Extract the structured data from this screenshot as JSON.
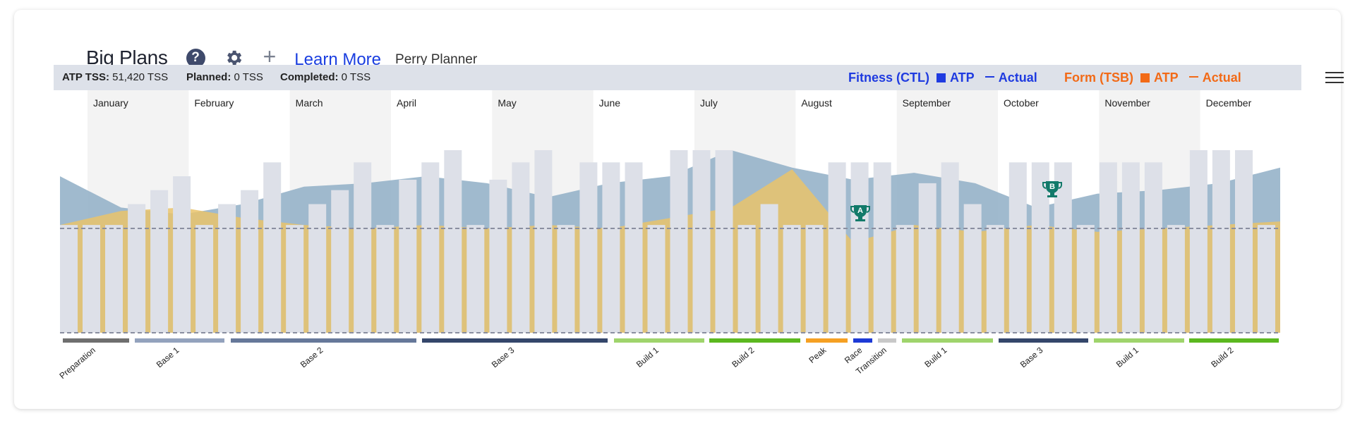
{
  "header": {
    "title": "Big Plans",
    "help_glyph": "?",
    "learn_more": "Learn More",
    "planner_name": "Perry Planner"
  },
  "summary": {
    "atp_tss_label": "ATP TSS:",
    "atp_tss_value": "51,420 TSS",
    "planned_label": "Planned:",
    "planned_value": "0 TSS",
    "completed_label": "Completed:",
    "completed_value": "0 TSS"
  },
  "legend": {
    "fitness_label": "Fitness (CTL)",
    "fitness_atp": "ATP",
    "fitness_actual": "Actual",
    "form_label": "Form (TSB)",
    "form_atp": "ATP",
    "form_actual": "Actual",
    "fitness_color": "#1f3be0",
    "form_color": "#f26a17"
  },
  "chart_data": {
    "type": "bar",
    "months": [
      "January",
      "February",
      "March",
      "April",
      "May",
      "June",
      "July",
      "August",
      "September",
      "October",
      "November",
      "December"
    ],
    "weekly_bar_levels": [
      0.62,
      0.62,
      0.62,
      0.74,
      0.82,
      0.9,
      0.62,
      0.74,
      0.82,
      0.98,
      0.62,
      0.74,
      0.82,
      0.98,
      0.62,
      0.88,
      0.98,
      1.05,
      0.62,
      0.88,
      0.98,
      1.05,
      0.62,
      0.98,
      0.98,
      0.98,
      0.62,
      1.05,
      1.05,
      1.05,
      0.62,
      0.74,
      0.62,
      0.62,
      0.98,
      0.98,
      0.98,
      0.62,
      0.86,
      0.98,
      0.74,
      0.62,
      0.98,
      0.98,
      0.98,
      0.62,
      0.98,
      0.98,
      0.98,
      0.62,
      1.05,
      1.05,
      1.05,
      0.62
    ],
    "fitness_ctl_levels": [
      0.9,
      0.72,
      0.68,
      0.74,
      0.84,
      0.86,
      0.9,
      0.86,
      0.78,
      0.86,
      0.9,
      1.05,
      0.95,
      0.88,
      0.92,
      0.86,
      0.72,
      0.8,
      0.82,
      0.86,
      0.95
    ],
    "form_tsb_levels": [
      0.62,
      0.7,
      0.72,
      0.66,
      0.62,
      0.6,
      0.62,
      0.6,
      0.62,
      0.6,
      0.66,
      0.72,
      0.94,
      0.52,
      0.62,
      0.58,
      0.62,
      0.58,
      0.6,
      0.62,
      0.64
    ],
    "reference_line_levels": [
      0,
      0.6
    ],
    "events": [
      {
        "label": "A"
      },
      {
        "label": "B"
      }
    ],
    "phases": [
      {
        "name": "Preparation",
        "color": "#6f6f6f"
      },
      {
        "name": "Base 1",
        "color": "#93a2bd"
      },
      {
        "name": "Base 2",
        "color": "#66789a"
      },
      {
        "name": "Base 3",
        "color": "#34466b"
      },
      {
        "name": "Build 1",
        "color": "#9fd46c"
      },
      {
        "name": "Build 2",
        "color": "#5bb81f"
      },
      {
        "name": "Peak",
        "color": "#f5a023"
      },
      {
        "name": "Race",
        "color": "#1d3ad6"
      },
      {
        "name": "Transition",
        "color": "#c8c8c8"
      },
      {
        "name": "Build 1",
        "color": "#9fd46c"
      },
      {
        "name": "Base 3",
        "color": "#34466b"
      },
      {
        "name": "Build 1",
        "color": "#9fd46c"
      },
      {
        "name": "Build 2",
        "color": "#5bb81f"
      }
    ],
    "colors": {
      "bar": "#dde0e8",
      "fitness": "#8faec6",
      "form": "#e9c36b",
      "month_band": "#f3f3f3",
      "trophy": "#127a6a"
    }
  }
}
